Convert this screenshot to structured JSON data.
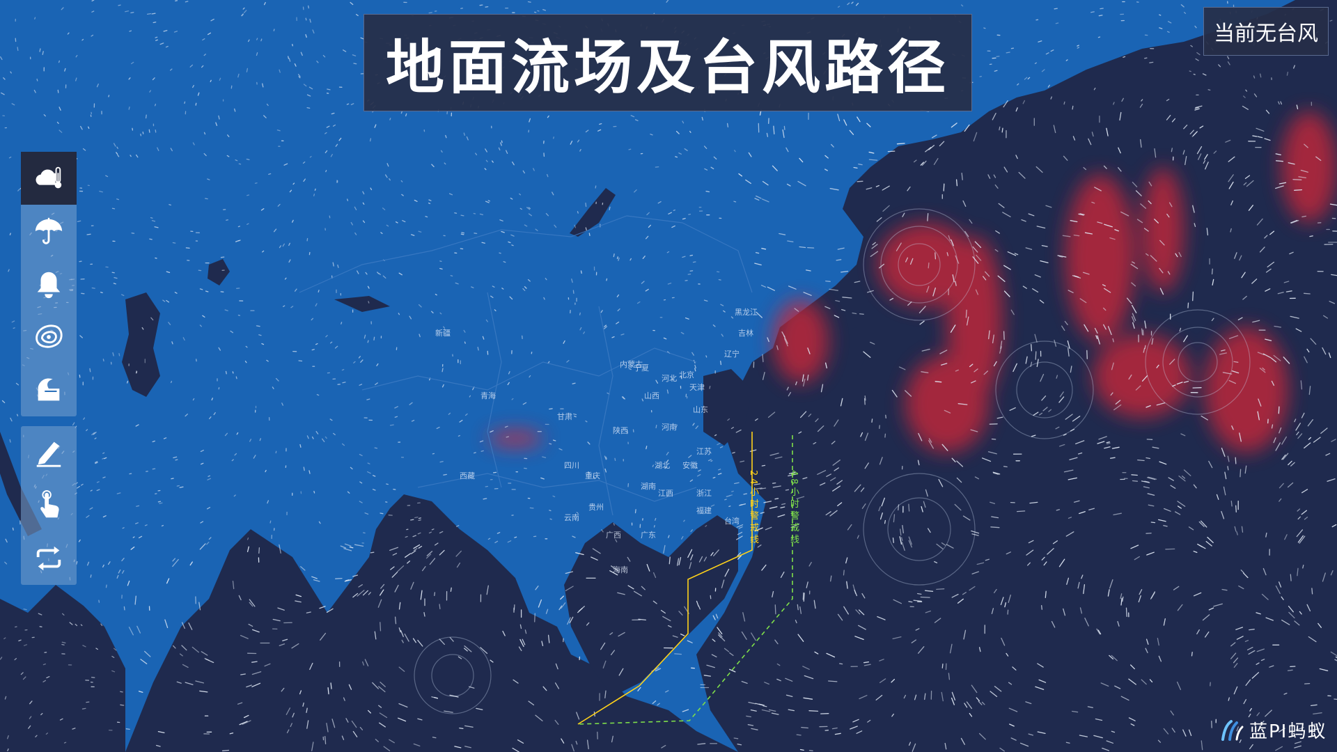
{
  "header": {
    "title": "地面流场及台风路径"
  },
  "status": {
    "text": "当前无台风"
  },
  "toolbar": {
    "primary": [
      {
        "id": "weather",
        "icon": "cloud-thermometer-icon",
        "active": true
      },
      {
        "id": "rain",
        "icon": "umbrella-icon",
        "active": false
      },
      {
        "id": "alert",
        "icon": "bell-icon",
        "active": false
      },
      {
        "id": "typhoon",
        "icon": "typhoon-icon",
        "active": false
      },
      {
        "id": "ocean",
        "icon": "wave-icon",
        "active": false
      }
    ],
    "secondary": [
      {
        "id": "draw",
        "icon": "pen-icon"
      },
      {
        "id": "point",
        "icon": "pointer-hand-icon"
      },
      {
        "id": "refresh",
        "icon": "refresh-icon"
      }
    ]
  },
  "map": {
    "warning_24h": {
      "label": "24小时警戒线",
      "color": "#ffd21a"
    },
    "warning_48h": {
      "label": "48小时警戒线",
      "color": "#7fe04a"
    },
    "place_labels": [
      "新疆",
      "西藏",
      "青海",
      "甘肃",
      "宁夏",
      "内蒙古",
      "四川",
      "重庆",
      "贵州",
      "云南",
      "广西",
      "广东",
      "湖南",
      "湖北",
      "河南",
      "陕西",
      "山西",
      "河北",
      "北京",
      "天津",
      "山东",
      "江苏",
      "安徽",
      "浙江",
      "江西",
      "福建",
      "台湾",
      "海南",
      "辽宁",
      "吉林",
      "黑龙江"
    ],
    "colors": {
      "ocean": "#1f2a4e",
      "land": "#1a64b4",
      "wind_strong": "#d02838"
    }
  },
  "logo": {
    "text": "蓝PI蚂蚁"
  }
}
